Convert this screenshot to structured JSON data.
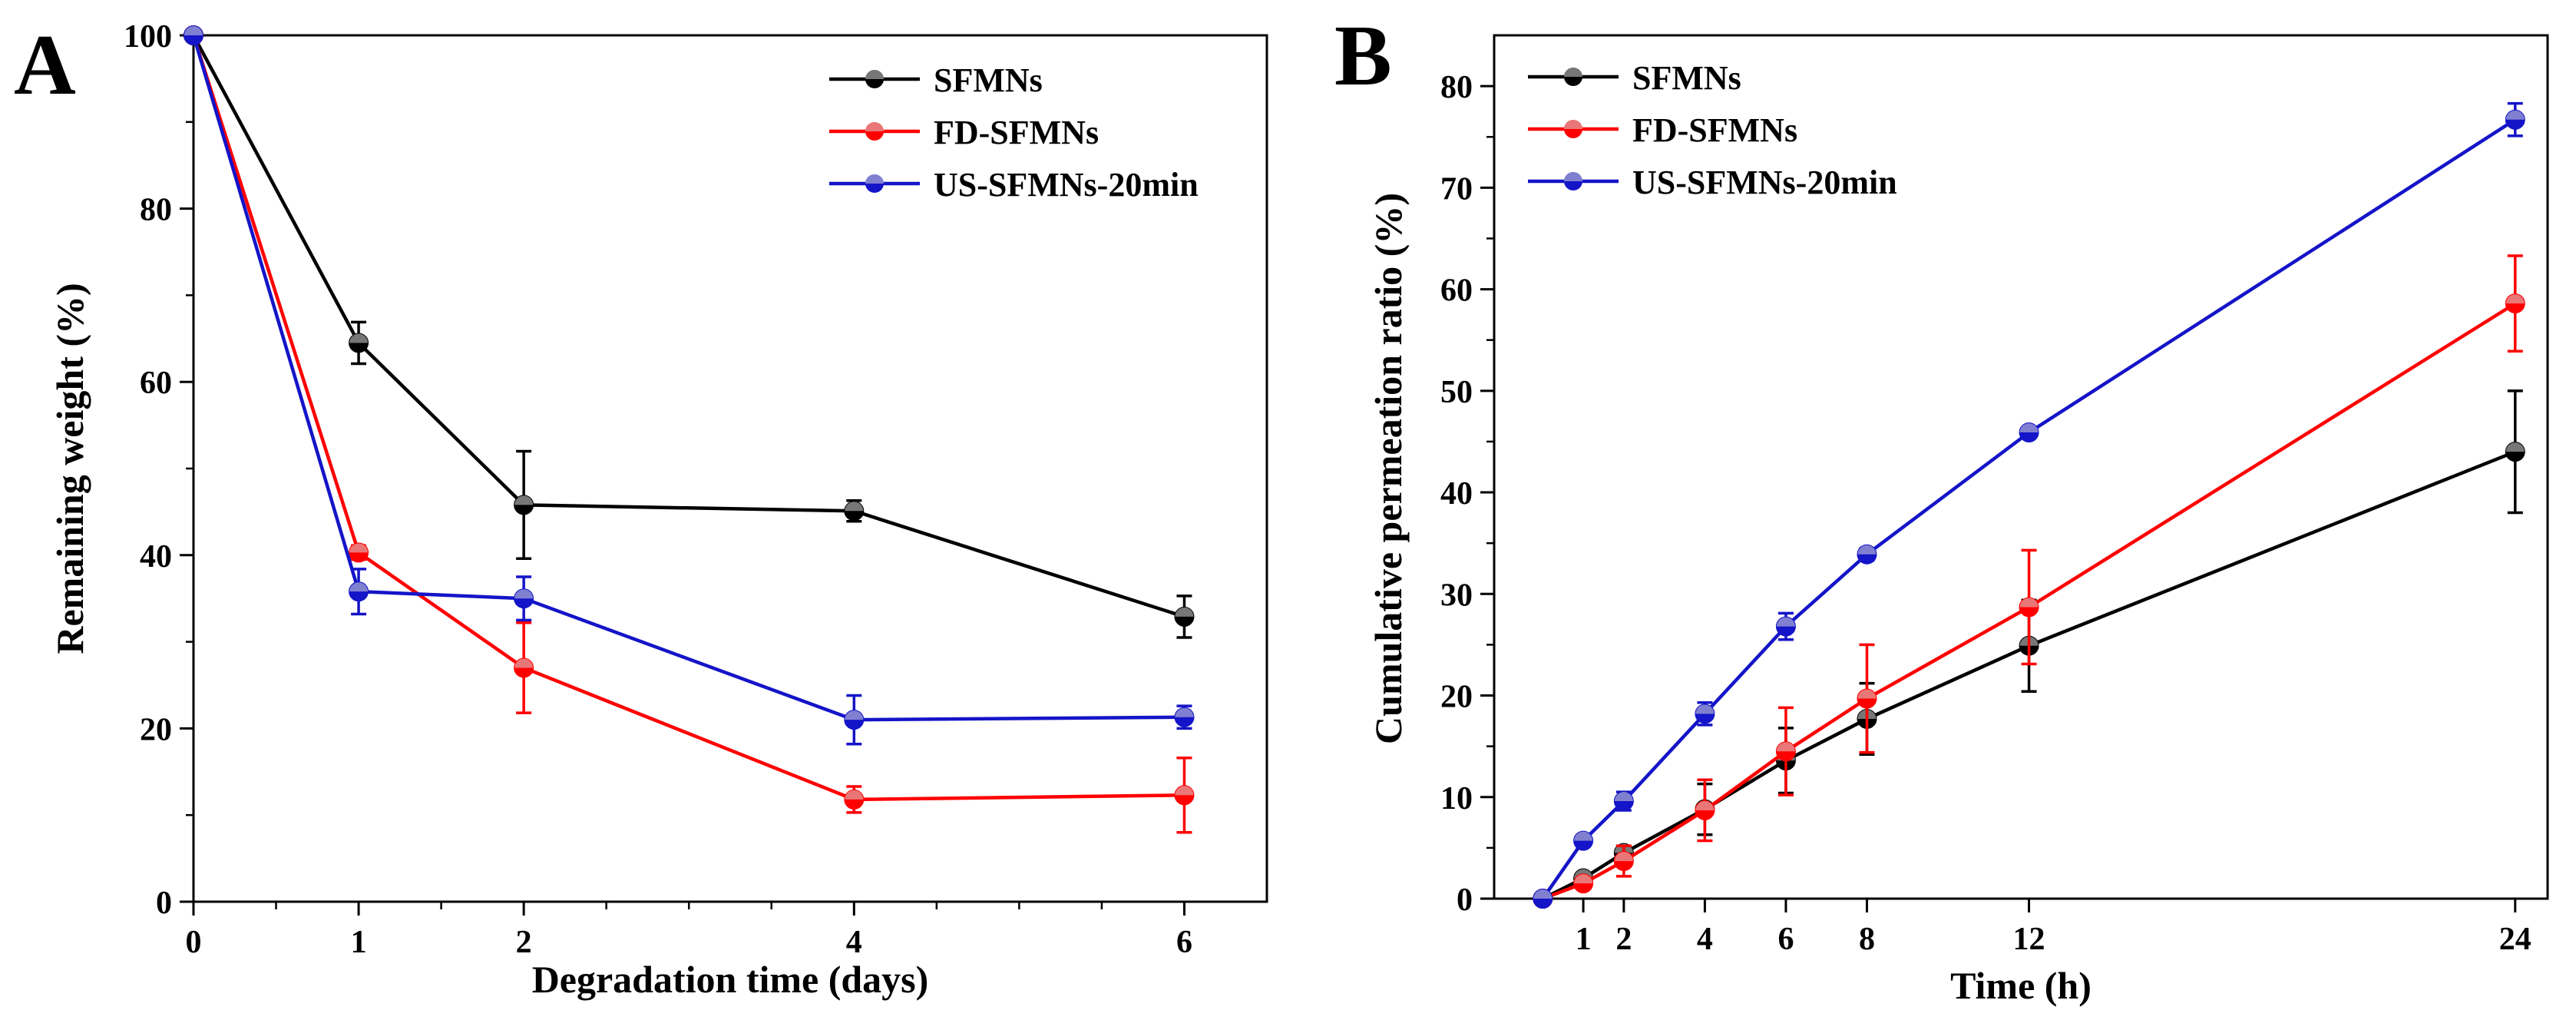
{
  "chart_data": [
    {
      "panel": "A",
      "type": "line",
      "title": "",
      "xlabel": "Degradation time (days)",
      "ylabel": "Remaining weight (%)",
      "xlim": [
        0,
        6.5
      ],
      "ylim": [
        0,
        100
      ],
      "xticks": [
        0,
        1,
        2,
        4,
        6
      ],
      "yticks": [
        0,
        20,
        40,
        60,
        80,
        100
      ],
      "legend_position": "top-right",
      "series": [
        {
          "name": "SFMNs",
          "color": "#000000",
          "x": [
            0,
            1,
            2,
            4,
            6
          ],
          "y": [
            100,
            64.5,
            45.8,
            45.1,
            32.9
          ],
          "err": [
            0,
            2.4,
            6.2,
            1.2,
            2.4
          ]
        },
        {
          "name": "FD-SFMNs",
          "color": "#ff0000",
          "x": [
            0,
            1,
            2,
            4,
            6
          ],
          "y": [
            100,
            40.3,
            27.0,
            11.8,
            12.3
          ],
          "err": [
            0,
            0.8,
            5.2,
            1.5,
            4.3
          ]
        },
        {
          "name": "US-SFMNs-20min",
          "color": "#1414c8",
          "x": [
            0,
            1,
            2,
            4,
            6
          ],
          "y": [
            100,
            35.8,
            35.0,
            21.0,
            21.3
          ],
          "err": [
            0,
            2.6,
            2.5,
            2.8,
            1.3
          ]
        }
      ]
    },
    {
      "panel": "B",
      "type": "line",
      "title": "",
      "xlabel": "Time (h)",
      "ylabel": "Cumulative permeation ratio (%)",
      "xlim": [
        -1.2,
        24.8
      ],
      "ylim": [
        0,
        85
      ],
      "xticks": [
        1,
        2,
        4,
        6,
        8,
        12,
        24
      ],
      "yticks": [
        0,
        10,
        20,
        30,
        40,
        50,
        60,
        70,
        80
      ],
      "legend_position": "top-left",
      "series": [
        {
          "name": "SFMNs",
          "color": "#000000",
          "x": [
            0,
            1,
            2,
            4,
            6,
            8,
            12,
            24
          ],
          "y": [
            0,
            2.0,
            4.5,
            8.8,
            13.6,
            17.7,
            24.9,
            44.0
          ],
          "err": [
            0,
            0.5,
            0.7,
            2.5,
            3.2,
            3.5,
            4.5,
            6.0
          ]
        },
        {
          "name": "FD-SFMNs",
          "color": "#ff0000",
          "x": [
            0,
            1,
            2,
            4,
            6,
            8,
            12,
            24
          ],
          "y": [
            0,
            1.5,
            3.7,
            8.7,
            14.5,
            19.7,
            28.7,
            58.6
          ],
          "err": [
            0,
            0.5,
            1.5,
            3.0,
            4.3,
            5.3,
            5.6,
            4.7
          ]
        },
        {
          "name": "US-SFMNs-20min",
          "color": "#1414c8",
          "x": [
            0,
            1,
            2,
            4,
            6,
            8,
            12,
            24
          ],
          "y": [
            0,
            5.7,
            9.6,
            18.2,
            26.8,
            33.9,
            45.9,
            76.7
          ],
          "err": [
            0,
            0.4,
            0.9,
            1.1,
            1.3,
            0.6,
            0.5,
            1.6
          ]
        }
      ]
    }
  ]
}
